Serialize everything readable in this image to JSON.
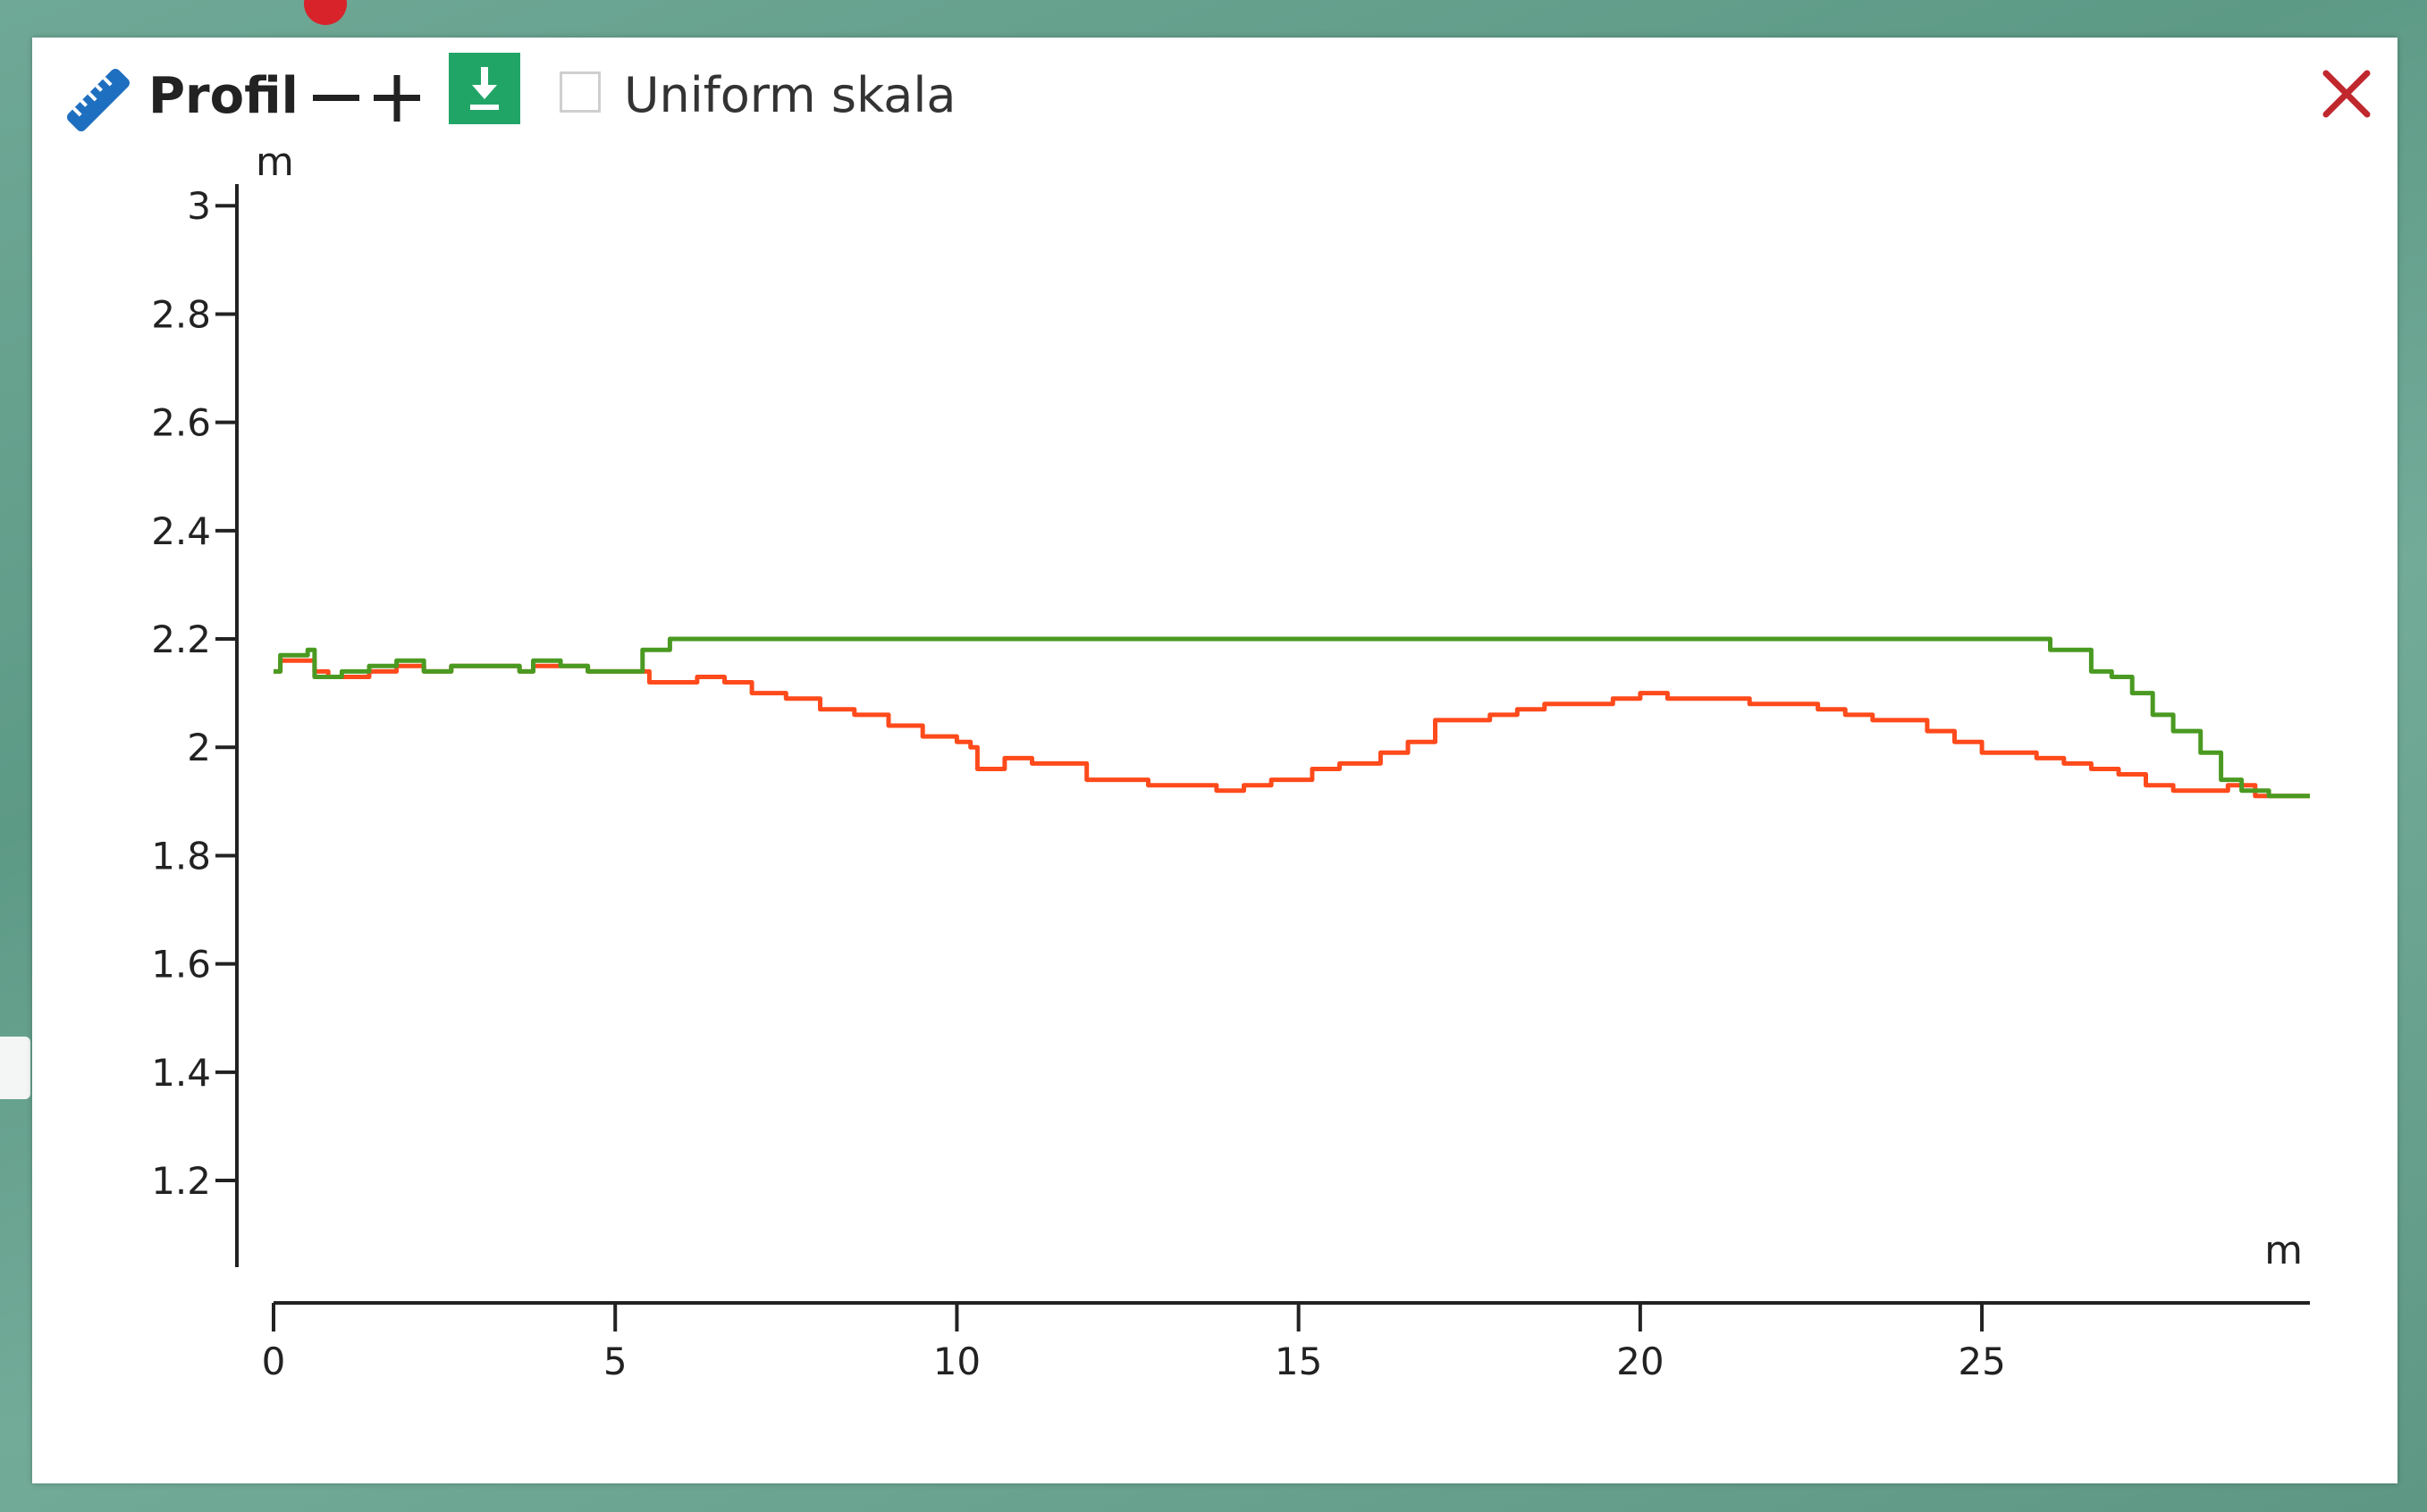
{
  "map": {
    "background_color": "#64a08c"
  },
  "panel": {
    "title": "Profil",
    "zoom_out_icon": "minus-icon",
    "zoom_in_icon": "plus-icon",
    "download_icon": "download-icon",
    "uniform_scale_label": "Uniform skala",
    "uniform_scale_checked": false,
    "close_icon": "close-icon",
    "accent_download": "#21a567",
    "close_color": "#c0282d",
    "ruler_color": "#1f6fc0"
  },
  "chart_data": {
    "type": "line",
    "xlabel": "m",
    "ylabel": "m",
    "xlim": [
      0,
      29.8
    ],
    "ylim": [
      1.04,
      3.04
    ],
    "x_ticks": [
      "0",
      "5",
      "10",
      "15",
      "20",
      "25"
    ],
    "x_tick_values": [
      0,
      5,
      10,
      15,
      20,
      25
    ],
    "y_ticks": [
      "3",
      "2.8",
      "2.6",
      "2.4",
      "2.2",
      "2",
      "1.8",
      "1.6",
      "1.4",
      "1.2"
    ],
    "y_tick_values": [
      3,
      2.8,
      2.6,
      2.4,
      2.2,
      2,
      1.8,
      1.6,
      1.4,
      1.2
    ],
    "grid": false,
    "series": [
      {
        "color": "#ff4a1c",
        "points": [
          [
            0,
            2.14
          ],
          [
            0.1,
            2.16
          ],
          [
            0.5,
            2.16
          ],
          [
            0.6,
            2.14
          ],
          [
            0.8,
            2.13
          ],
          [
            1.0,
            2.13
          ],
          [
            1.4,
            2.14
          ],
          [
            1.8,
            2.15
          ],
          [
            2.2,
            2.14
          ],
          [
            2.6,
            2.15
          ],
          [
            3.0,
            2.15
          ],
          [
            3.6,
            2.14
          ],
          [
            3.8,
            2.15
          ],
          [
            4.2,
            2.15
          ],
          [
            4.6,
            2.14
          ],
          [
            5.0,
            2.14
          ],
          [
            5.3,
            2.14
          ],
          [
            5.5,
            2.12
          ],
          [
            5.8,
            2.12
          ],
          [
            6.2,
            2.13
          ],
          [
            6.6,
            2.12
          ],
          [
            7.0,
            2.1
          ],
          [
            7.5,
            2.09
          ],
          [
            8.0,
            2.07
          ],
          [
            8.5,
            2.06
          ],
          [
            9.0,
            2.04
          ],
          [
            9.5,
            2.02
          ],
          [
            10.0,
            2.01
          ],
          [
            10.2,
            2.0
          ],
          [
            10.3,
            1.96
          ],
          [
            10.6,
            1.96
          ],
          [
            10.7,
            1.98
          ],
          [
            11.1,
            1.97
          ],
          [
            11.5,
            1.97
          ],
          [
            11.8,
            1.97
          ],
          [
            11.9,
            1.94
          ],
          [
            12.4,
            1.94
          ],
          [
            12.8,
            1.93
          ],
          [
            13.4,
            1.93
          ],
          [
            13.8,
            1.92
          ],
          [
            14.2,
            1.93
          ],
          [
            14.6,
            1.94
          ],
          [
            15.0,
            1.94
          ],
          [
            15.2,
            1.96
          ],
          [
            15.6,
            1.97
          ],
          [
            16.0,
            1.97
          ],
          [
            16.2,
            1.99
          ],
          [
            16.6,
            2.01
          ],
          [
            17.0,
            2.05
          ],
          [
            17.4,
            2.05
          ],
          [
            17.8,
            2.06
          ],
          [
            18.2,
            2.07
          ],
          [
            18.6,
            2.08
          ],
          [
            19.2,
            2.08
          ],
          [
            19.6,
            2.09
          ],
          [
            20.0,
            2.1
          ],
          [
            20.4,
            2.09
          ],
          [
            20.8,
            2.09
          ],
          [
            21.2,
            2.09
          ],
          [
            21.6,
            2.08
          ],
          [
            22.0,
            2.08
          ],
          [
            22.6,
            2.07
          ],
          [
            23.0,
            2.06
          ],
          [
            23.4,
            2.05
          ],
          [
            23.8,
            2.05
          ],
          [
            24.2,
            2.03
          ],
          [
            24.6,
            2.01
          ],
          [
            25.0,
            1.99
          ],
          [
            25.4,
            1.99
          ],
          [
            25.8,
            1.98
          ],
          [
            26.2,
            1.97
          ],
          [
            26.6,
            1.96
          ],
          [
            27.0,
            1.95
          ],
          [
            27.4,
            1.93
          ],
          [
            27.8,
            1.92
          ],
          [
            28.2,
            1.92
          ],
          [
            28.6,
            1.93
          ],
          [
            29.0,
            1.91
          ],
          [
            29.4,
            1.91
          ],
          [
            29.8,
            1.91
          ]
        ]
      },
      {
        "color": "#4a9a22",
        "points": [
          [
            0,
            2.14
          ],
          [
            0.1,
            2.17
          ],
          [
            0.5,
            2.18
          ],
          [
            0.6,
            2.13
          ],
          [
            1.0,
            2.14
          ],
          [
            1.4,
            2.15
          ],
          [
            1.8,
            2.16
          ],
          [
            2.2,
            2.14
          ],
          [
            2.6,
            2.15
          ],
          [
            3.0,
            2.15
          ],
          [
            3.6,
            2.14
          ],
          [
            3.8,
            2.16
          ],
          [
            4.2,
            2.15
          ],
          [
            4.6,
            2.14
          ],
          [
            5.0,
            2.14
          ],
          [
            5.3,
            2.14
          ],
          [
            5.4,
            2.18
          ],
          [
            5.7,
            2.18
          ],
          [
            5.8,
            2.2
          ],
          [
            10.0,
            2.2
          ],
          [
            15.0,
            2.2
          ],
          [
            20.0,
            2.2
          ],
          [
            25.0,
            2.2
          ],
          [
            25.9,
            2.2
          ],
          [
            26.0,
            2.18
          ],
          [
            26.3,
            2.18
          ],
          [
            26.6,
            2.14
          ],
          [
            26.9,
            2.13
          ],
          [
            27.2,
            2.1
          ],
          [
            27.5,
            2.06
          ],
          [
            27.8,
            2.03
          ],
          [
            28.2,
            1.99
          ],
          [
            28.5,
            1.94
          ],
          [
            28.8,
            1.92
          ],
          [
            29.2,
            1.91
          ],
          [
            29.8,
            1.91
          ]
        ]
      }
    ]
  }
}
